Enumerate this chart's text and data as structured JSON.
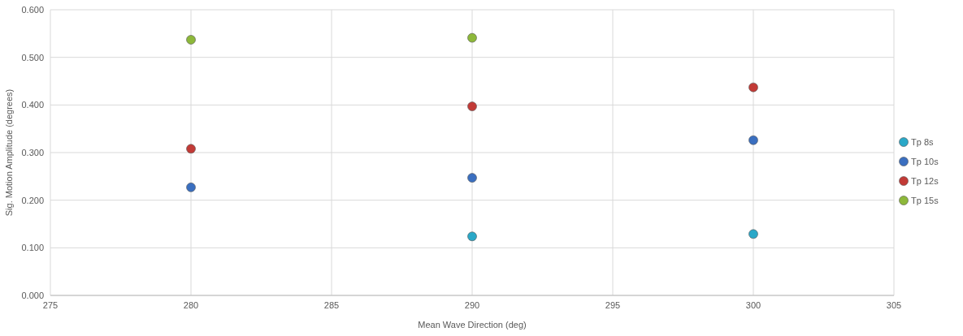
{
  "chart_data": {
    "type": "scatter",
    "xlabel": "Mean Wave Direction (deg)",
    "ylabel": "Sig. Motion Amplitude (degrees)",
    "xlim": [
      275,
      305
    ],
    "xticks": [
      275,
      280,
      285,
      290,
      295,
      300,
      305
    ],
    "ylim": [
      0,
      0.6
    ],
    "yticks": [
      {
        "value": 0,
        "label": "0.000"
      },
      {
        "value": 0.1,
        "label": "0.100"
      },
      {
        "value": 0.2,
        "label": "0.200"
      },
      {
        "value": 0.3,
        "label": "0.300"
      },
      {
        "value": 0.4,
        "label": "0.400"
      },
      {
        "value": 0.5,
        "label": "0.500"
      },
      {
        "value": 0.6,
        "label": "0.600"
      }
    ],
    "grid": true,
    "legend": "right",
    "marker": "circle",
    "series": [
      {
        "name": "Tp 8s",
        "color": "#2aa8c8",
        "x": [
          290,
          300
        ],
        "values": [
          0.124,
          0.129
        ]
      },
      {
        "name": "Tp 10s",
        "color": "#3a6fc0",
        "x": [
          280,
          290,
          300
        ],
        "values": [
          0.227,
          0.247,
          0.326
        ]
      },
      {
        "name": "Tp 12s",
        "color": "#c23a36",
        "x": [
          280,
          290,
          300
        ],
        "values": [
          0.308,
          0.397,
          0.437
        ]
      },
      {
        "name": "Tp 15s",
        "color": "#8db83a",
        "x": [
          280,
          290
        ],
        "values": [
          0.537,
          0.541
        ]
      }
    ]
  }
}
